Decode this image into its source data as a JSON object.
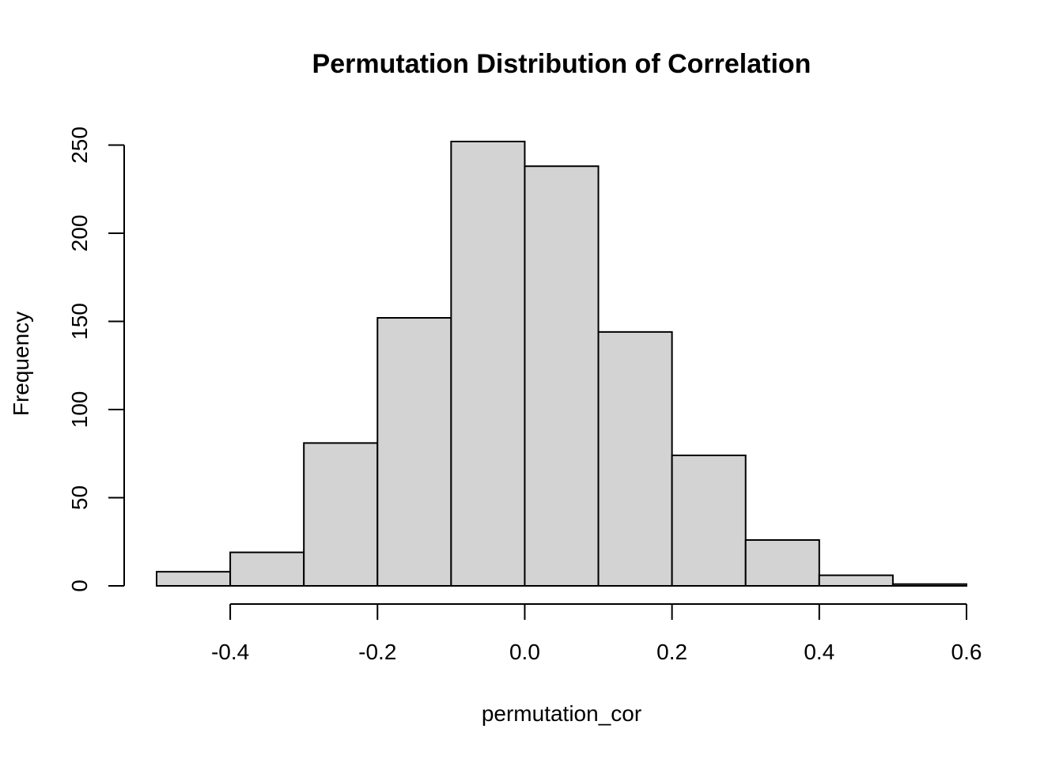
{
  "chart_data": {
    "type": "bar",
    "title": "Permutation Distribution of Correlation",
    "xlabel": "permutation_cor",
    "ylabel": "Frequency",
    "bins": [
      {
        "x0": -0.5,
        "x1": -0.4,
        "count": 8
      },
      {
        "x0": -0.4,
        "x1": -0.3,
        "count": 19
      },
      {
        "x0": -0.3,
        "x1": -0.2,
        "count": 81
      },
      {
        "x0": -0.2,
        "x1": -0.1,
        "count": 152
      },
      {
        "x0": -0.1,
        "x1": 0.0,
        "count": 252
      },
      {
        "x0": 0.0,
        "x1": 0.1,
        "count": 238
      },
      {
        "x0": 0.1,
        "x1": 0.2,
        "count": 144
      },
      {
        "x0": 0.2,
        "x1": 0.3,
        "count": 74
      },
      {
        "x0": 0.3,
        "x1": 0.4,
        "count": 26
      },
      {
        "x0": 0.4,
        "x1": 0.5,
        "count": 6
      },
      {
        "x0": 0.5,
        "x1": 0.6,
        "count": 1
      }
    ],
    "x_ticks": [
      "-0.4",
      "-0.2",
      "0.0",
      "0.2",
      "0.4",
      "0.6"
    ],
    "y_ticks": [
      "0",
      "50",
      "100",
      "150",
      "200",
      "250"
    ],
    "xlim": [
      -0.5,
      0.6
    ],
    "ylim": [
      0,
      252
    ],
    "grid": false,
    "bar_color": "#d3d3d3",
    "edge_color": "#000000"
  }
}
